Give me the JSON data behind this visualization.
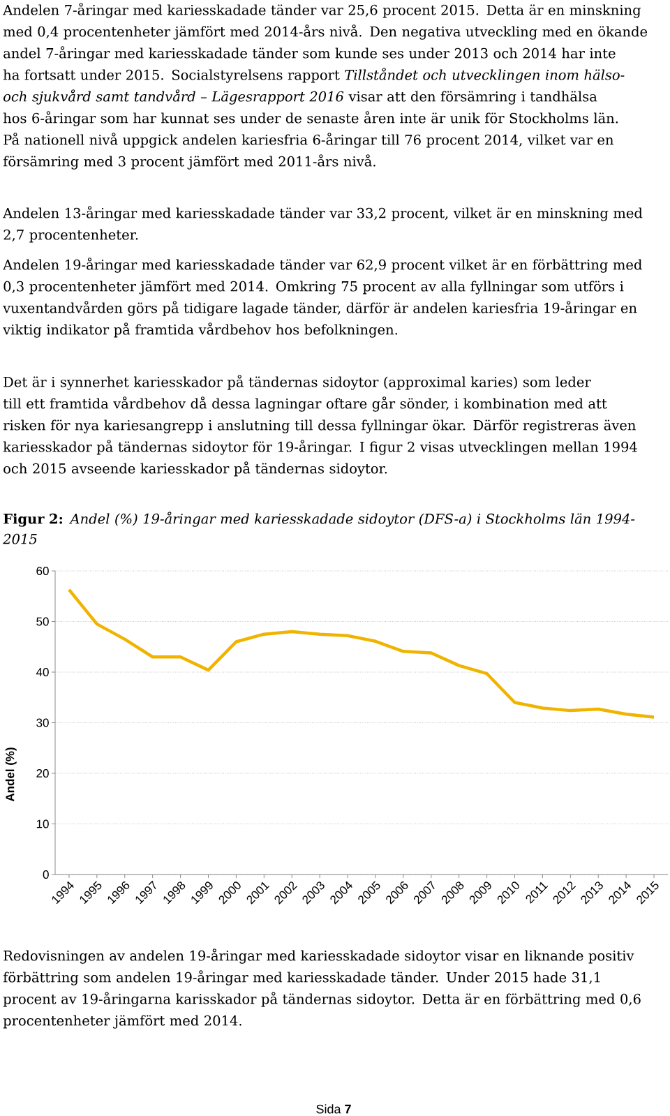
{
  "chart_data": {
    "type": "line",
    "title": "**Figur 2:** *Andel (%) 19-åringar med kariesskadade sidoytor (DFS-a) i Stockholms län 1994-2015*",
    "ylabel": "Andel (%)",
    "categories": [
      "1994",
      "1995",
      "1996",
      "1997",
      "1998",
      "1999",
      "2000",
      "2001",
      "2002",
      "2003",
      "2004",
      "2005",
      "2006",
      "2007",
      "2008",
      "2009",
      "2010",
      "2011",
      "2012",
      "2013",
      "2014",
      "2015"
    ],
    "values": [
      56.3,
      49.5,
      46.5,
      43.0,
      43.0,
      40.4,
      46.0,
      47.5,
      48.0,
      47.5,
      47.2,
      46.1,
      44.1,
      43.8,
      41.3,
      39.7,
      34.0,
      32.9,
      32.4,
      32.7,
      31.7,
      31.1
    ],
    "color": "#f0b400",
    "ylim": [
      0,
      60
    ],
    "yticks": [
      0,
      10,
      20,
      30,
      40,
      50,
      60
    ],
    "grid": "y",
    "annotations": [
      "Andelen 7-åringar med kariesskadade tänder var 25,6 procent 2015. Detta är en minskning med 0,4 procentenheter jämfört med 2014-års nivå. Den negativa utveckling med en ökande andel 7-åringar med kariesskadade tänder som kunde ses under 2013 och 2014 har inte ha fortsatt under 2015. Socialstyrelsens rapport *Tillståndet och utvecklingen inom hälso- och sjukvård samt tandvård – Lägesrapport 2016* visar att den försämring i tandhälsa hos 6-åringar som har kunnat ses under de senaste åren inte är unik för Stockholms län. På nationell nivå uppgick andelen kariesfria 6-åringar till 76 procent 2014, vilket var en försämring med 3 procent jämfört med 2011-års nivå.",
      "Andelen 13-åringar med kariesskadade tänder var 33,2 procent, vilket är en minskning med 2,7 procentenheter.",
      "Andelen 19-åringar med kariesskadade tänder var 62,9 procent vilket är en förbättring med 0,3 procentenheter jämfört med 2014. Omkring 75 procent av alla fyllningar som utförs i vuxentandvården görs på tidigare lagade tänder, därför är andelen kariesfria 19-åringar en viktig indikator på framtida vårdbehov hos befolkningen.",
      "Det är i synnerhet kariesskador på tändernas sidoytor (approximal karies) som leder till ett framtida vårdbehov då dessa lagningar oftare går sönder, i kombination med att risken för nya kariesangrepp i anslutning till dessa fyllningar ökar. Därför registreras även kariesskador på tändernas sidoytor för 19-åringar. I figur 2 visas utvecklingen mellan 1994 och 2015 avseende kariesskador på tändernas sidoytor.",
      "Redovisningen av andelen 19-åringar med kariesskadade sidoytor visar en liknande positiv förbättring som andelen 19-åringar med kariesskadade tänder. Under 2015 hade 31,1 procent av 19-åringarna karisskador på tändernas sidoytor. Detta är en förbättring med 0,6 procentenheter jämfört med 2014.",
      "Sida **7**"
    ]
  }
}
